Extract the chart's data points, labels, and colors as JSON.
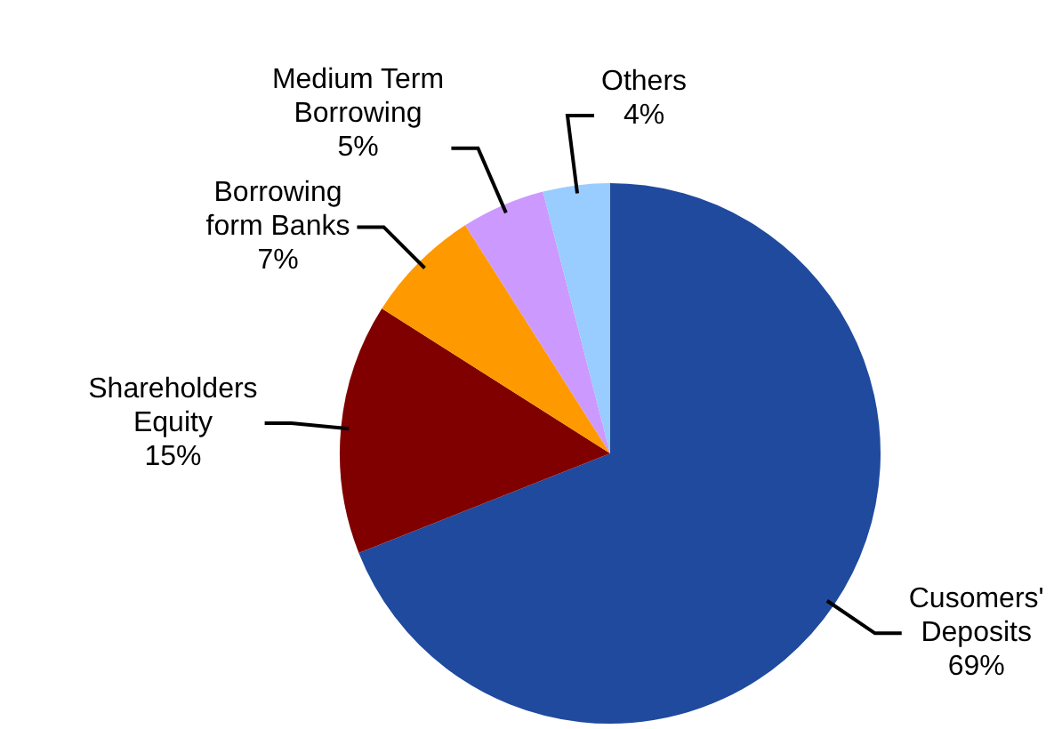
{
  "chart_data": {
    "type": "pie",
    "categories": [
      "Cusomers' Deposits",
      "Shareholders Equity",
      "Borrowing form Banks",
      "Medium Term Borrowing",
      "Others"
    ],
    "values": [
      69,
      15,
      7,
      5,
      4
    ],
    "value_labels": [
      "69%",
      "15%",
      "7%",
      "5%",
      "4%"
    ],
    "colors": [
      "#1f4a9e",
      "#800000",
      "#ff9900",
      "#cc99ff",
      "#99ccff"
    ],
    "legend": false
  }
}
